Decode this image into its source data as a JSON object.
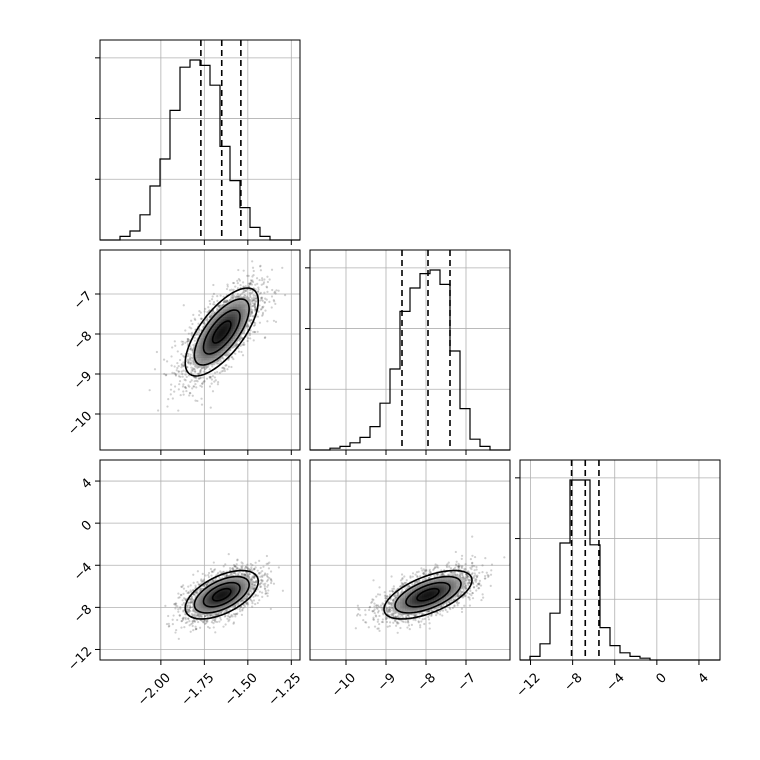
{
  "chart_data": {
    "type": "corner",
    "grid": true,
    "parameters": [
      {
        "mean": -1.65,
        "sd": 0.105,
        "range": [
          -2.35,
          -1.2
        ],
        "ticks": [
          -2.0,
          -1.75,
          -1.5,
          -1.25
        ],
        "tick_labels": [
          "−2.00",
          "−1.75",
          "−1.50",
          "−1.25"
        ],
        "quantiles": [
          -1.77,
          -1.65,
          -1.54
        ]
      },
      {
        "mean": -7.95,
        "sd": 0.55,
        "range": [
          -10.9,
          -5.9
        ],
        "ticks": [
          -10,
          -9,
          -8,
          -7
        ],
        "tick_labels": [
          "−10",
          "−9",
          "−8",
          "−7"
        ],
        "quantiles": [
          -8.6,
          -7.95,
          -7.4
        ]
      },
      {
        "mean": -6.8,
        "sd": 1.15,
        "range": [
          -13,
          6
        ],
        "ticks": [
          -12,
          -8,
          -4,
          0,
          4
        ],
        "tick_labels": [
          "−12",
          "−8",
          "−4",
          "0",
          "4"
        ],
        "quantiles": [
          -8.1,
          -6.8,
          -5.5
        ]
      }
    ],
    "histograms": [
      {
        "bin_start": -2.35,
        "bin_width": 0.0575,
        "counts": [
          0,
          0,
          2,
          5,
          14,
          30,
          45,
          72,
          96,
          100,
          97,
          86,
          52,
          33,
          18,
          7,
          2,
          0,
          0,
          0
        ]
      },
      {
        "bin_start": -10.9,
        "bin_width": 0.25,
        "counts": [
          0,
          0,
          1,
          2,
          4,
          7,
          13,
          26,
          45,
          77,
          90,
          98,
          100,
          92,
          55,
          23,
          6,
          2,
          0,
          0
        ]
      },
      {
        "bin_start": -13,
        "bin_width": 0.95,
        "counts": [
          0,
          2,
          9,
          26,
          65,
          100,
          100,
          64,
          18,
          8,
          4,
          2,
          1,
          0,
          0,
          0,
          0,
          0,
          0,
          0
        ]
      }
    ],
    "correlations": {
      "1-0": 0.7,
      "2-0": 0.55,
      "2-1": 0.6
    },
    "levels": [
      0.5,
      1.0,
      1.5,
      2.0
    ]
  }
}
